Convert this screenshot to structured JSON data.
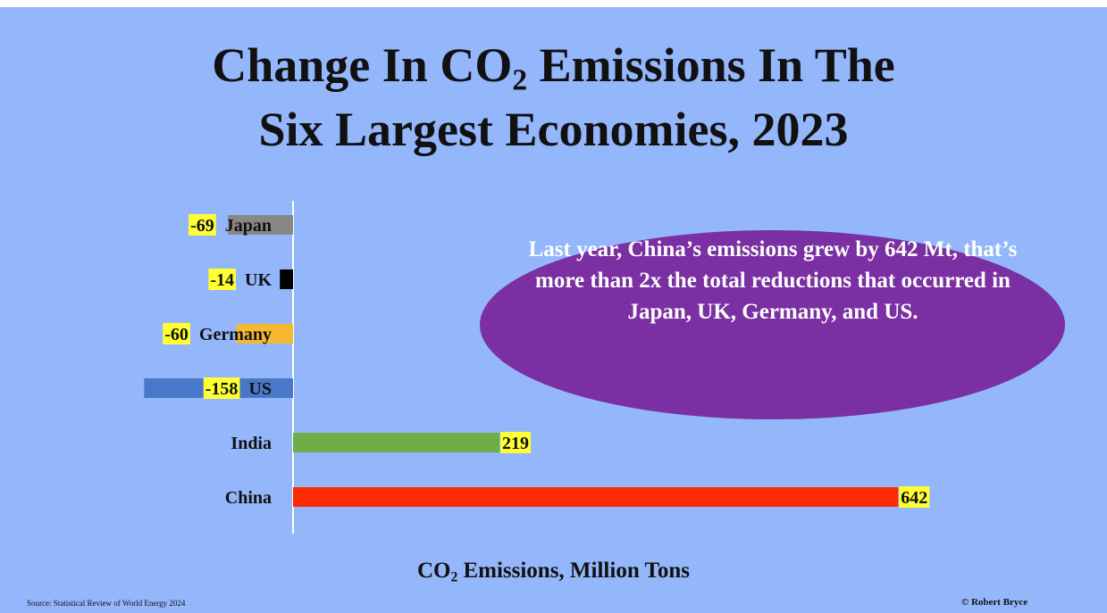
{
  "chart_data": {
    "type": "bar",
    "orientation": "horizontal",
    "title_line1_prefix": "Change In CO",
    "title_line1_sub": "2",
    "title_line1_suffix": " Emissions In The",
    "title_line2": "Six Largest Economies, 2023",
    "xlabel_prefix": "CO",
    "xlabel_sub": "2",
    "xlabel_suffix": " Emissions, Million Tons",
    "grid": false,
    "legend": "none",
    "categories": [
      "Japan",
      "UK",
      "Germany",
      "US",
      "India",
      "China"
    ],
    "values": [
      -69,
      -14,
      -60,
      -158,
      219,
      642
    ],
    "value_labels": [
      "-69",
      "-14",
      "-60",
      "-158",
      "219",
      "642"
    ],
    "colors": [
      "#878787",
      "#000000",
      "#f5b82e",
      "#4a78c8",
      "#6fad46",
      "#ff2a00"
    ],
    "label_highlight": "#ffff33",
    "annotation": "Last year, China’s emissions grew by 642 Mt, that’s more than 2x the total reductions that occurred in Japan, UK, Germany, and US.",
    "source": "Source: Statistical Review of World Energy 2024",
    "credit": "© Robert Bryce"
  },
  "colors": {
    "background": "#94b6fb",
    "ellipse": "#7a2fa2",
    "axis": "#ffffff"
  }
}
